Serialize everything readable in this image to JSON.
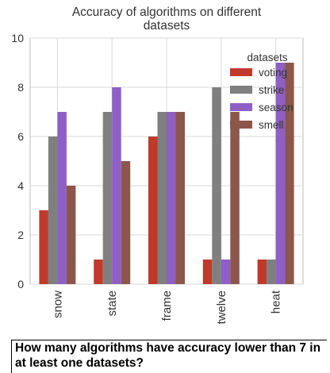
{
  "chart_data": {
    "type": "bar",
    "title": "Accuracy of algorithms on different datasets",
    "title_lines": [
      "Accuracy of algorithms on different",
      "datasets"
    ],
    "xlabel": "",
    "ylabel": "",
    "categories": [
      "snow",
      "state",
      "frame",
      "twelve",
      "heat"
    ],
    "series": [
      {
        "name": "voting",
        "color": "#c0392b",
        "values": [
          3,
          1,
          6,
          1,
          1
        ]
      },
      {
        "name": "strike",
        "color": "#7f7f7f",
        "values": [
          6,
          7,
          7,
          8,
          1
        ]
      },
      {
        "name": "season",
        "color": "#8e5fc4",
        "values": [
          7,
          8,
          7,
          1,
          9
        ]
      },
      {
        "name": "smell",
        "color": "#8c564b",
        "values": [
          4,
          5,
          7,
          7,
          9
        ]
      }
    ],
    "ylim": [
      0,
      10
    ],
    "yticks": [
      0,
      2,
      4,
      6,
      8,
      10
    ],
    "grid": true,
    "legend": {
      "title": "datasets",
      "position": "top-right"
    }
  },
  "question": "How many algorithms have accuracy lower than 7 in at least one datasets?"
}
